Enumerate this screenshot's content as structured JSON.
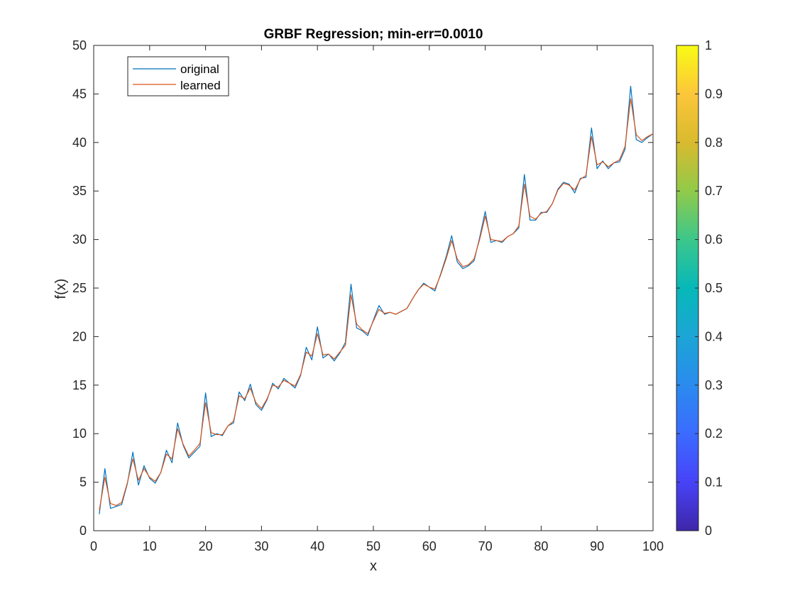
{
  "chart_data": {
    "type": "line",
    "title": "GRBF Regression; min-err=0.0010",
    "xlabel": "x",
    "ylabel": "f(x)",
    "xlim": [
      0,
      100
    ],
    "ylim": [
      0,
      50
    ],
    "xticks": [
      "0",
      "10",
      "20",
      "30",
      "40",
      "50",
      "60",
      "70",
      "80",
      "90",
      "100"
    ],
    "yticks": [
      "0",
      "5",
      "10",
      "15",
      "20",
      "25",
      "30",
      "35",
      "40",
      "45",
      "50"
    ],
    "grid": false,
    "legend_position": "top-left",
    "series": [
      {
        "name": "original",
        "color": "#0072BD",
        "x": [
          1,
          2,
          3,
          4,
          5,
          6,
          7,
          8,
          9,
          10,
          11,
          12,
          13,
          14,
          15,
          16,
          17,
          18,
          19,
          20,
          21,
          22,
          23,
          24,
          25,
          26,
          27,
          28,
          29,
          30,
          31,
          32,
          33,
          34,
          35,
          36,
          37,
          38,
          39,
          40,
          41,
          42,
          43,
          44,
          45,
          46,
          47,
          48,
          49,
          50,
          51,
          52,
          53,
          54,
          55,
          56,
          57,
          58,
          59,
          60,
          61,
          62,
          63,
          64,
          65,
          66,
          67,
          68,
          69,
          70,
          71,
          72,
          73,
          74,
          75,
          76,
          77,
          78,
          79,
          80,
          81,
          82,
          83,
          84,
          85,
          86,
          87,
          88,
          89,
          90,
          91,
          92,
          93,
          94,
          95,
          96,
          97,
          98,
          99,
          100
        ],
        "values": [
          1.7,
          6.4,
          2.3,
          2.5,
          2.7,
          4.8,
          8.1,
          4.7,
          6.7,
          5.4,
          4.9,
          6.0,
          8.3,
          7.0,
          11.1,
          8.8,
          7.5,
          8.1,
          8.7,
          14.2,
          9.7,
          10.0,
          9.8,
          10.8,
          11.1,
          14.3,
          13.4,
          15.1,
          13.0,
          12.4,
          13.5,
          15.2,
          14.6,
          15.7,
          15.2,
          14.7,
          16.0,
          18.9,
          17.6,
          21.0,
          17.8,
          18.2,
          17.5,
          18.3,
          19.4,
          25.4,
          20.9,
          20.6,
          20.1,
          21.7,
          23.2,
          22.3,
          22.5,
          22.3,
          22.6,
          22.9,
          23.9,
          24.8,
          25.5,
          25.1,
          24.7,
          26.4,
          28.2,
          30.4,
          27.7,
          27.0,
          27.3,
          27.8,
          30.2,
          32.9,
          29.7,
          29.9,
          29.7,
          30.3,
          30.6,
          31.2,
          36.7,
          32.0,
          32.0,
          32.8,
          32.8,
          33.7,
          35.2,
          35.9,
          35.7,
          34.8,
          36.3,
          36.4,
          41.5,
          37.3,
          38.1,
          37.3,
          37.9,
          38.0,
          39.3,
          45.8,
          40.3,
          40.0,
          40.5,
          40.9
        ]
      },
      {
        "name": "learned",
        "color": "#D95319",
        "x": [
          1,
          2,
          3,
          4,
          5,
          6,
          7,
          8,
          9,
          10,
          11,
          12,
          13,
          14,
          15,
          16,
          17,
          18,
          19,
          20,
          21,
          22,
          23,
          24,
          25,
          26,
          27,
          28,
          29,
          30,
          31,
          32,
          33,
          34,
          35,
          36,
          37,
          38,
          39,
          40,
          41,
          42,
          43,
          44,
          45,
          46,
          47,
          48,
          49,
          50,
          51,
          52,
          53,
          54,
          55,
          56,
          57,
          58,
          59,
          60,
          61,
          62,
          63,
          64,
          65,
          66,
          67,
          68,
          69,
          70,
          71,
          72,
          73,
          74,
          75,
          76,
          77,
          78,
          79,
          80,
          81,
          82,
          83,
          84,
          85,
          86,
          87,
          88,
          89,
          90,
          91,
          92,
          93,
          94,
          95,
          96,
          97,
          98,
          99,
          100
        ],
        "values": [
          2.1,
          5.5,
          2.8,
          2.6,
          2.9,
          4.9,
          7.4,
          5.2,
          6.4,
          5.5,
          5.1,
          6.0,
          7.9,
          7.4,
          10.5,
          8.9,
          7.7,
          8.3,
          9.0,
          13.2,
          10.1,
          9.9,
          9.9,
          10.8,
          11.3,
          13.9,
          13.6,
          14.7,
          13.2,
          12.6,
          13.6,
          15.0,
          14.8,
          15.5,
          15.2,
          14.9,
          16.1,
          18.4,
          18.0,
          20.3,
          18.1,
          18.2,
          17.7,
          18.4,
          19.1,
          24.3,
          21.3,
          20.7,
          20.3,
          21.6,
          22.8,
          22.4,
          22.5,
          22.3,
          22.6,
          22.9,
          23.9,
          24.8,
          25.4,
          25.1,
          24.9,
          26.3,
          28.0,
          29.9,
          28.0,
          27.2,
          27.4,
          28.0,
          30.0,
          32.4,
          30.0,
          29.9,
          29.8,
          30.3,
          30.6,
          31.4,
          35.7,
          32.4,
          32.1,
          32.7,
          32.9,
          33.7,
          35.1,
          35.8,
          35.6,
          35.1,
          36.2,
          36.6,
          40.6,
          37.7,
          38.0,
          37.5,
          37.9,
          38.2,
          39.6,
          44.5,
          40.8,
          40.2,
          40.6,
          40.9
        ]
      }
    ],
    "colorbar": {
      "min": 0,
      "max": 1,
      "ticks": [
        "0",
        "0.1",
        "0.2",
        "0.3",
        "0.4",
        "0.5",
        "0.6",
        "0.7",
        "0.8",
        "0.9",
        "1"
      ],
      "colormap": "parula"
    }
  }
}
